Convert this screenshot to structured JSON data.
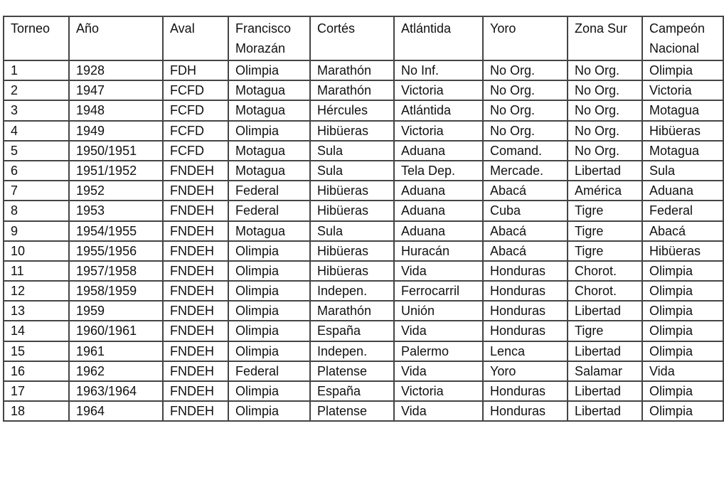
{
  "table": {
    "headers": [
      "Torneo",
      "Año",
      "Aval",
      "Francisco Morazán",
      "Cortés",
      "Atlántida",
      "Yoro",
      "Zona Sur",
      "Campeón Nacional"
    ],
    "rows": [
      [
        "1",
        "1928",
        "FDH",
        "Olimpia",
        "Marathón",
        "No Inf.",
        "No Org.",
        "No Org.",
        "Olimpia"
      ],
      [
        "2",
        "1947",
        "FCFD",
        "Motagua",
        "Marathón",
        "Victoria",
        "No Org.",
        "No Org.",
        "Victoria"
      ],
      [
        "3",
        "1948",
        "FCFD",
        "Motagua",
        "Hércules",
        "Atlántida",
        "No Org.",
        "No Org.",
        "Motagua"
      ],
      [
        "4",
        "1949",
        "FCFD",
        "Olimpia",
        "Hibüeras",
        "Victoria",
        "No Org.",
        "No Org.",
        "Hibüeras"
      ],
      [
        "5",
        "1950/1951",
        "FCFD",
        "Motagua",
        "Sula",
        "Aduana",
        "Comand.",
        "No Org.",
        "Motagua"
      ],
      [
        "6",
        "1951/1952",
        "FNDEH",
        "Motagua",
        "Sula",
        "Tela Dep.",
        "Mercade.",
        "Libertad",
        "Sula"
      ],
      [
        "7",
        "1952",
        "FNDEH",
        "Federal",
        "Hibüeras",
        "Aduana",
        "Abacá",
        "América",
        "Aduana"
      ],
      [
        "8",
        "1953",
        "FNDEH",
        "Federal",
        "Hibüeras",
        "Aduana",
        "Cuba",
        "Tigre",
        "Federal"
      ],
      [
        "9",
        "1954/1955",
        "FNDEH",
        "Motagua",
        "Sula",
        "Aduana",
        "Abacá",
        "Tigre",
        "Abacá"
      ],
      [
        "10",
        "1955/1956",
        "FNDEH",
        "Olimpia",
        "Hibüeras",
        "Huracán",
        "Abacá",
        "Tigre",
        "Hibüeras"
      ],
      [
        "11",
        "1957/1958",
        "FNDEH",
        "Olimpia",
        "Hibüeras",
        "Vida",
        "Honduras",
        "Chorot.",
        "Olimpia"
      ],
      [
        "12",
        "1958/1959",
        "FNDEH",
        "Olimpia",
        "Indepen.",
        "Ferrocarril",
        "Honduras",
        "Chorot.",
        "Olimpia"
      ],
      [
        "13",
        "1959",
        "FNDEH",
        "Olimpia",
        "Marathón",
        "Unión",
        "Honduras",
        "Libertad",
        "Olimpia"
      ],
      [
        "14",
        "1960/1961",
        "FNDEH",
        "Olimpia",
        "España",
        "Vida",
        "Honduras",
        "Tigre",
        "Olimpia"
      ],
      [
        "15",
        "1961",
        "FNDEH",
        "Olimpia",
        "Indepen.",
        "Palermo",
        "Lenca",
        "Libertad",
        "Olimpia"
      ],
      [
        "16",
        "1962",
        "FNDEH",
        "Federal",
        "Platense",
        "Vida",
        "Yoro",
        "Salamar",
        "Vida"
      ],
      [
        "17",
        "1963/1964",
        "FNDEH",
        "Olimpia",
        "España",
        "Victoria",
        "Honduras",
        "Libertad",
        "Olimpia"
      ],
      [
        "18",
        "1964",
        "FNDEH",
        "Olimpia",
        "Platense",
        "Vida",
        "Honduras",
        "Libertad",
        "Olimpia"
      ]
    ]
  }
}
